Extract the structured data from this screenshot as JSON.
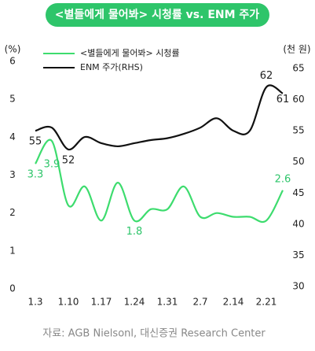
{
  "chart_data": {
    "type": "line",
    "title": "<별들에게 물어봐> 시청률 vs. ENM 주가",
    "y_label": "(%)",
    "y2_label": "(천 원)",
    "source": "자료: AGB Nielsonl, 대신증권 Research Center",
    "categories": [
      "1.3",
      null,
      "1.10",
      null,
      "1.17",
      null,
      "1.24",
      null,
      "1.31",
      null,
      "2.7",
      null,
      "2.14",
      null,
      "2.21",
      null
    ],
    "series": [
      {
        "name": "<별들에게 물어봐> 시청률",
        "color": "#3ddc6e",
        "values": [
          3.3,
          3.9,
          2.2,
          2.7,
          1.8,
          2.8,
          1.8,
          2.1,
          2.1,
          2.7,
          1.9,
          2.0,
          1.9,
          1.9,
          1.8,
          2.6
        ],
        "value_labels": [
          "3.3",
          "3.9",
          null,
          null,
          null,
          null,
          "1.8",
          null,
          null,
          null,
          null,
          null,
          null,
          null,
          null,
          "2.6"
        ]
      },
      {
        "name": "ENM 주가(RHS)",
        "color": "#111111",
        "axis": "y2",
        "values": [
          55,
          55.5,
          52,
          54,
          53,
          52.5,
          53,
          53.5,
          53.8,
          54.5,
          55.5,
          57,
          55,
          55,
          62,
          61
        ],
        "value_labels": [
          "55",
          null,
          "52",
          null,
          null,
          null,
          null,
          null,
          null,
          null,
          null,
          null,
          null,
          null,
          "62",
          "61"
        ]
      }
    ],
    "ylim": [
      0,
      6
    ],
    "yticks": [
      0,
      1,
      2,
      3,
      4,
      5,
      6
    ],
    "y2lim": [
      30,
      65
    ],
    "y2ticks": [
      30,
      35,
      40,
      45,
      50,
      55,
      60,
      65
    ],
    "legend": "top-left"
  }
}
